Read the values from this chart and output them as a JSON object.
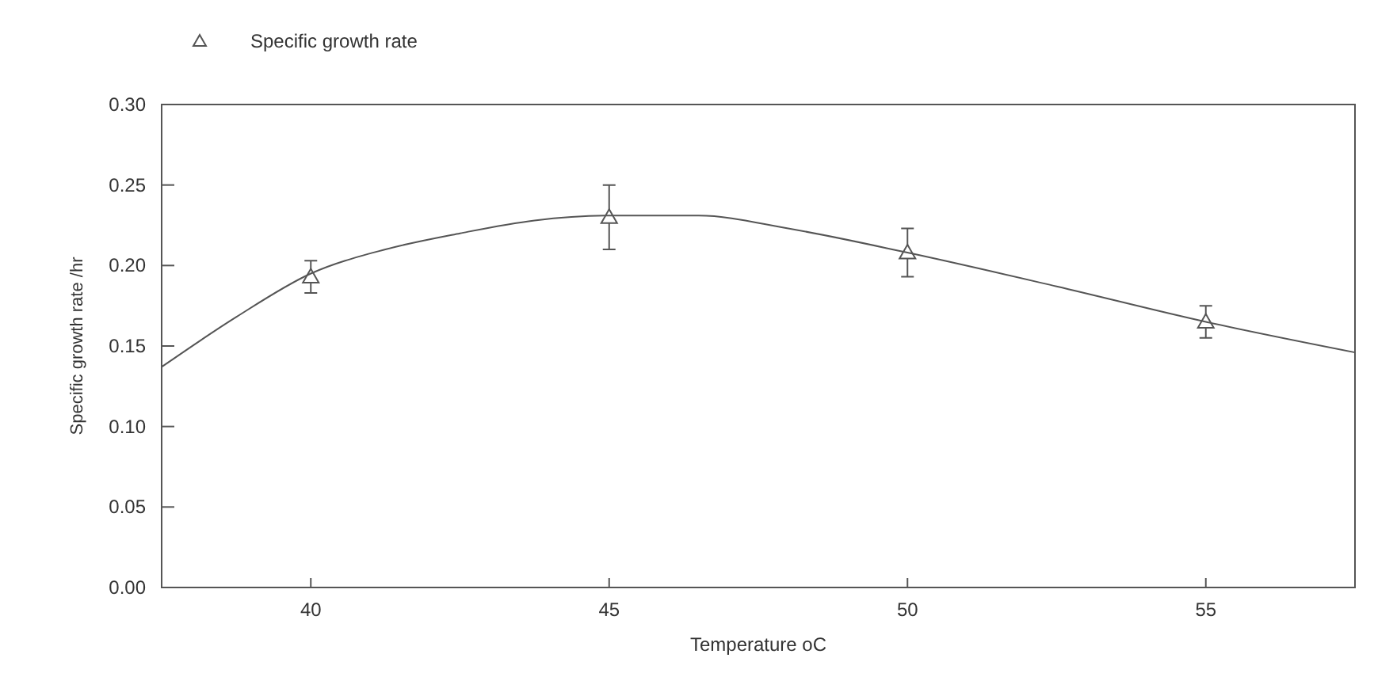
{
  "chart_data": {
    "type": "scatter",
    "xlabel": "Temperature oC",
    "ylabel": "Specific growth rate /hr",
    "xlim": [
      37.5,
      57.5
    ],
    "xticks": [
      40,
      45,
      50,
      55
    ],
    "ylim": [
      0,
      0.3
    ],
    "yticks": [
      {
        "value": 0,
        "label": "0.00"
      },
      {
        "value": 0.05,
        "label": "0.05"
      },
      {
        "value": 0.1,
        "label": "0.10"
      },
      {
        "value": 0.15,
        "label": "0.15"
      },
      {
        "value": 0.2,
        "label": "0.20"
      },
      {
        "value": 0.25,
        "label": "0.25"
      },
      {
        "value": 0.3,
        "label": "0.30"
      }
    ],
    "legend": "top left",
    "marker": "triangle",
    "grid": false,
    "series": [
      {
        "name": "Specific growth rate",
        "color": "#555555",
        "x": [
          40,
          45,
          50,
          55
        ],
        "values": [
          0.193,
          0.23,
          0.208,
          0.165
        ],
        "errors": [
          0.01,
          0.02,
          0.015,
          0.01
        ]
      },
      {
        "type": "line",
        "color": "#555555",
        "marker": "none",
        "x": [
          37.5,
          38.75,
          40,
          41.25,
          42.5,
          43.75,
          45,
          46.5,
          48,
          50,
          52.5,
          55,
          57.5
        ],
        "values": [
          0.137,
          0.168,
          0.195,
          0.21,
          0.22,
          0.228,
          0.231,
          0.231,
          0.223,
          0.208,
          0.187,
          0.165,
          0.146
        ]
      }
    ]
  }
}
